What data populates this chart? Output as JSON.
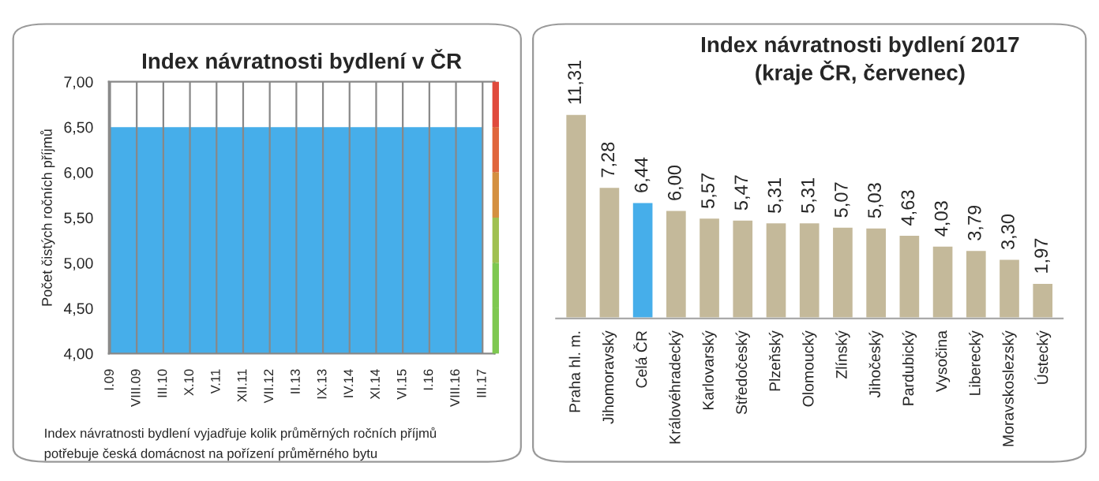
{
  "chart_data": [
    {
      "type": "area",
      "title": "Index návratnosti bydlení v ČR",
      "ylabel": "Počet čistých ročních příjmů",
      "categories": [
        "I.09",
        "VIII.09",
        "III.10",
        "X.10",
        "V.11",
        "XII.11",
        "VII.12",
        "II.13",
        "IX.13",
        "IV.14",
        "XI.14",
        "VI.15",
        "I.16",
        "VIII.16",
        "III.17"
      ],
      "series": [
        {
          "color": "#46aeea",
          "values": [
            6.5,
            6.5,
            6.5,
            6.5,
            6.5,
            6.5,
            6.5,
            6.5,
            6.5,
            6.5,
            6.5,
            6.5,
            6.5,
            6.5,
            6.5
          ]
        }
      ],
      "ylim": [
        4,
        7
      ],
      "yticks": [
        {
          "value": 4,
          "label": "4,00"
        },
        {
          "value": 4.5,
          "label": "4,50"
        },
        {
          "value": 5,
          "label": "5,00"
        },
        {
          "value": 5.5,
          "label": "5,50"
        },
        {
          "value": 6,
          "label": "6,00"
        },
        {
          "value": 6.5,
          "label": "6,50"
        },
        {
          "value": 7,
          "label": "7,00"
        }
      ],
      "grid": "x",
      "legend": false,
      "annotations": [
        "Index návratnosti bydlení vyjadřuje kolik průměrných ročních příjmů",
        "potřebuje česká domácnost na pořízení průměrného bytu"
      ]
    },
    {
      "type": "bar",
      "title": "Index návratnosti bydlení 2017\n(kraje ČR, červenec)",
      "categories": [
        "Praha hl. m.",
        "Jihomoravský",
        "Celá ČR",
        "Královéhradecký",
        "Karlovarský",
        "Středočeský",
        "Plzeňský",
        "Olomoucký",
        "Zlínský",
        "Jihočeský",
        "Pardubický",
        "Vysočina",
        "Liberecký",
        "Moravskoslezský",
        "Ústecký"
      ],
      "values": [
        11.31,
        7.28,
        6.44,
        6.0,
        5.57,
        5.47,
        5.31,
        5.31,
        5.07,
        5.03,
        4.63,
        4.03,
        3.79,
        3.3,
        1.97
      ],
      "value_labels": [
        "11,31",
        "7,28",
        "6,44",
        "6,00",
        "5,57",
        "5,47",
        "5,31",
        "5,31",
        "5,07",
        "5,03",
        "4,63",
        "4,03",
        "3,79",
        "3,30",
        "1,97"
      ],
      "colors": [
        "#c4b99a",
        "#c4b99a",
        "#46aeea",
        "#c4b99a",
        "#c4b99a",
        "#c4b99a",
        "#c4b99a",
        "#c4b99a",
        "#c4b99a",
        "#c4b99a",
        "#c4b99a",
        "#c4b99a",
        "#c4b99a",
        "#c4b99a",
        "#c4b99a"
      ],
      "tick_labels": "x",
      "grid": false,
      "legend": false
    }
  ]
}
